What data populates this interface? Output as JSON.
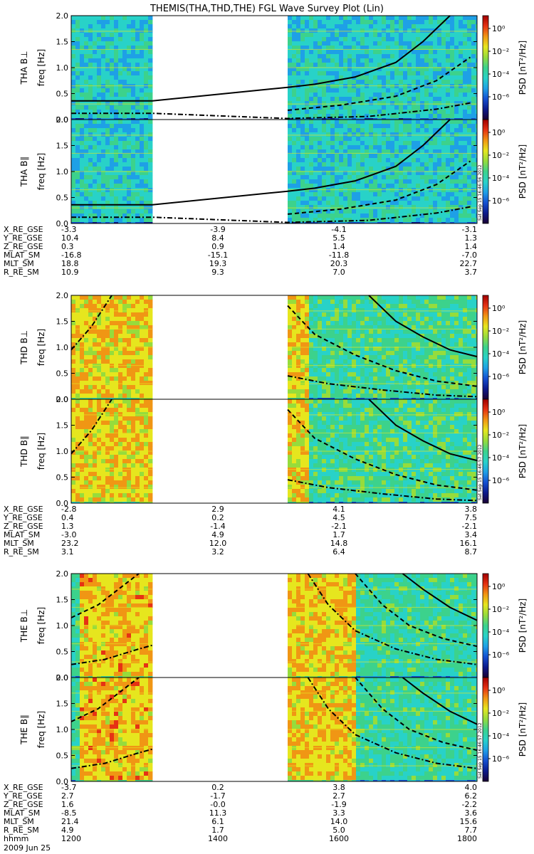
{
  "title": "THEMIS(THA,THD,THE) FGL Wave Survey Plot (Lin)",
  "colorbar": {
    "label": "PSD [nT²/Hz]",
    "ticks": [
      "10⁰",
      "10⁻²",
      "10⁻⁴",
      "10⁻⁶"
    ],
    "colors": [
      "#1a0033",
      "#0c1a8c",
      "#1450d2",
      "#1ea0e6",
      "#28d2c8",
      "#3cd28c",
      "#96dc3c",
      "#e6e61e",
      "#f09614",
      "#e63214",
      "#a00000"
    ]
  },
  "chart_data": [
    {
      "type": "heatmap",
      "probe": "THA",
      "date": "2009 Jun 25",
      "x_ticks": [
        "1200",
        "1400",
        "1600",
        "1800"
      ],
      "stamp": "Sat Sep 15 16:46:56 2012",
      "panels": [
        {
          "ylabel_probe": "THA B⊥",
          "ylabel_freq": "freq [Hz]",
          "ylim": [
            0,
            2.0
          ],
          "yticks": [
            "0.0",
            "0.5",
            "1.0",
            "1.5",
            "2.0"
          ],
          "data_ranges_hhmm": [
            [
              1200,
              1320
            ],
            [
              1520,
              1800
            ]
          ],
          "intensity": "low",
          "curves": [
            {
              "style": "solid",
              "points": [
                [
                  1200,
                  0.36
                ],
                [
                  1320,
                  0.36
                ],
                [
                  1520,
                  0.62
                ],
                [
                  1560,
                  0.68
                ],
                [
                  1620,
                  0.82
                ],
                [
                  1680,
                  1.1
                ],
                [
                  1720,
                  1.5
                ],
                [
                  1760,
                  2.0
                ]
              ]
            },
            {
              "style": "dashed",
              "points": [
                [
                  1520,
                  0.18
                ],
                [
                  1600,
                  0.28
                ],
                [
                  1680,
                  0.45
                ],
                [
                  1740,
                  0.75
                ],
                [
                  1790,
                  1.2
                ]
              ]
            },
            {
              "style": "dash-dot",
              "points": [
                [
                  1200,
                  0.12
                ],
                [
                  1320,
                  0.12
                ],
                [
                  1520,
                  0.02
                ],
                [
                  1640,
                  0.06
                ],
                [
                  1740,
                  0.2
                ],
                [
                  1790,
                  0.32
                ]
              ]
            }
          ]
        },
        {
          "ylabel_probe": "THA B∥",
          "ylabel_freq": "freq [Hz]",
          "ylim": [
            0,
            2.0
          ],
          "yticks": [
            "0.0",
            "0.5",
            "1.0",
            "1.5",
            "2.0"
          ],
          "data_ranges_hhmm": [
            [
              1200,
              1320
            ],
            [
              1520,
              1800
            ]
          ],
          "intensity": "low",
          "curves": [
            {
              "style": "solid",
              "points": [
                [
                  1200,
                  0.36
                ],
                [
                  1320,
                  0.36
                ],
                [
                  1520,
                  0.62
                ],
                [
                  1560,
                  0.68
                ],
                [
                  1620,
                  0.82
                ],
                [
                  1680,
                  1.1
                ],
                [
                  1720,
                  1.5
                ],
                [
                  1760,
                  2.0
                ]
              ]
            },
            {
              "style": "dashed",
              "points": [
                [
                  1520,
                  0.18
                ],
                [
                  1600,
                  0.28
                ],
                [
                  1680,
                  0.45
                ],
                [
                  1740,
                  0.75
                ],
                [
                  1790,
                  1.2
                ]
              ]
            },
            {
              "style": "dash-dot",
              "points": [
                [
                  1200,
                  0.12
                ],
                [
                  1320,
                  0.12
                ],
                [
                  1520,
                  0.02
                ],
                [
                  1640,
                  0.06
                ],
                [
                  1740,
                  0.2
                ],
                [
                  1790,
                  0.32
                ]
              ]
            }
          ]
        }
      ],
      "ephemeris": {
        "labels": [
          "X_RE_GSE",
          "Y_RE_GSE",
          "Z_RE_GSE",
          "MLAT_SM",
          "MLT_SM",
          "R_RE_SM"
        ],
        "columns": [
          [
            "-3.3",
            "10.4",
            "0.3",
            "-16.8",
            "18.8",
            "10.9"
          ],
          [
            "-3.9",
            "8.4",
            "0.9",
            "-15.1",
            "19.3",
            "9.3"
          ],
          [
            "-4.1",
            "5.5",
            "1.4",
            "-11.8",
            "20.3",
            "7.0"
          ],
          [
            "-3.1",
            "1.3",
            "1.4",
            "-7.0",
            "22.7",
            "3.7"
          ]
        ]
      }
    },
    {
      "type": "heatmap",
      "probe": "THD",
      "stamp": "Sat Sep 15 16:46:57 2012",
      "panels": [
        {
          "ylabel_probe": "THD B⊥",
          "ylabel_freq": "freq [Hz]",
          "ylim": [
            0,
            2.0
          ],
          "yticks": [
            "0.0",
            "0.5",
            "1.0",
            "1.5",
            "2.0"
          ],
          "data_ranges_hhmm": [
            [
              1200,
              1320
            ],
            [
              1520,
              1800
            ]
          ],
          "intensity": "high",
          "curves": [
            {
              "style": "dash-dot",
              "points": [
                [
                  1200,
                  0.95
                ],
                [
                  1230,
                  1.4
                ],
                [
                  1260,
                  2.0
                ]
              ]
            },
            {
              "style": "dashed",
              "points": [
                [
                  1520,
                  1.8
                ],
                [
                  1560,
                  1.25
                ],
                [
                  1620,
                  0.85
                ],
                [
                  1680,
                  0.55
                ],
                [
                  1740,
                  0.35
                ],
                [
                  1800,
                  0.25
                ]
              ]
            },
            {
              "style": "solid",
              "points": [
                [
                  1640,
                  2.0
                ],
                [
                  1680,
                  1.5
                ],
                [
                  1720,
                  1.2
                ],
                [
                  1760,
                  0.95
                ],
                [
                  1800,
                  0.82
                ]
              ]
            },
            {
              "style": "dash-dot",
              "points": [
                [
                  1520,
                  0.45
                ],
                [
                  1580,
                  0.3
                ],
                [
                  1660,
                  0.18
                ],
                [
                  1740,
                  0.08
                ],
                [
                  1800,
                  0.05
                ]
              ]
            }
          ]
        },
        {
          "ylabel_probe": "THD B∥",
          "ylabel_freq": "freq [Hz]",
          "ylim": [
            0,
            2.0
          ],
          "yticks": [
            "0.0",
            "0.5",
            "1.0",
            "1.5",
            "2.0"
          ],
          "data_ranges_hhmm": [
            [
              1200,
              1320
            ],
            [
              1520,
              1800
            ]
          ],
          "intensity": "high",
          "curves": [
            {
              "style": "dash-dot",
              "points": [
                [
                  1200,
                  0.95
                ],
                [
                  1230,
                  1.4
                ],
                [
                  1260,
                  2.0
                ]
              ]
            },
            {
              "style": "dashed",
              "points": [
                [
                  1520,
                  1.8
                ],
                [
                  1560,
                  1.25
                ],
                [
                  1620,
                  0.85
                ],
                [
                  1680,
                  0.55
                ],
                [
                  1740,
                  0.35
                ],
                [
                  1800,
                  0.25
                ]
              ]
            },
            {
              "style": "solid",
              "points": [
                [
                  1640,
                  2.0
                ],
                [
                  1680,
                  1.5
                ],
                [
                  1720,
                  1.2
                ],
                [
                  1760,
                  0.95
                ],
                [
                  1800,
                  0.82
                ]
              ]
            },
            {
              "style": "dash-dot",
              "points": [
                [
                  1520,
                  0.45
                ],
                [
                  1580,
                  0.3
                ],
                [
                  1660,
                  0.18
                ],
                [
                  1740,
                  0.08
                ],
                [
                  1800,
                  0.05
                ]
              ]
            }
          ]
        }
      ],
      "ephemeris": {
        "labels": [
          "X_RE_GSE",
          "Y_RE_GSE",
          "Z_RE_GSE",
          "MLAT_SM",
          "MLT_SM",
          "R_RE_SM"
        ],
        "columns": [
          [
            "-2.8",
            "0.4",
            "1.3",
            "-3.0",
            "23.2",
            "3.1"
          ],
          [
            "2.9",
            "0.2",
            "-1.4",
            "4.9",
            "12.0",
            "3.2"
          ],
          [
            "4.1",
            "4.5",
            "-2.1",
            "1.7",
            "14.8",
            "6.4"
          ],
          [
            "3.8",
            "7.5",
            "-2.1",
            "3.4",
            "16.1",
            "8.7"
          ]
        ]
      }
    },
    {
      "type": "heatmap",
      "probe": "THE",
      "stamp": "Sat Sep 15 16:46:57 2012",
      "panels": [
        {
          "ylabel_probe": "THE B⊥",
          "ylabel_freq": "freq [Hz]",
          "ylim": [
            0,
            2.0
          ],
          "yticks": [
            "0.0",
            "0.5",
            "1.0",
            "1.5",
            "2.0"
          ],
          "data_ranges_hhmm": [
            [
              1200,
              1320
            ],
            [
              1520,
              1800
            ]
          ],
          "intensity": "mixed",
          "curves": [
            {
              "style": "dashed",
              "points": [
                [
                  1200,
                  1.15
                ],
                [
                  1240,
                  1.4
                ],
                [
                  1280,
                  1.8
                ],
                [
                  1300,
                  2.0
                ]
              ]
            },
            {
              "style": "dash-dot",
              "points": [
                [
                  1200,
                  0.25
                ],
                [
                  1250,
                  0.35
                ],
                [
                  1300,
                  0.55
                ],
                [
                  1320,
                  0.62
                ]
              ]
            },
            {
              "style": "dash-dot",
              "points": [
                [
                  1550,
                  2.0
                ],
                [
                  1580,
                  1.4
                ],
                [
                  1620,
                  0.9
                ],
                [
                  1680,
                  0.55
                ],
                [
                  1740,
                  0.35
                ],
                [
                  1800,
                  0.25
                ]
              ]
            },
            {
              "style": "dashed",
              "points": [
                [
                  1620,
                  2.0
                ],
                [
                  1660,
                  1.4
                ],
                [
                  1700,
                  1.0
                ],
                [
                  1750,
                  0.75
                ],
                [
                  1800,
                  0.6
                ]
              ]
            },
            {
              "style": "solid",
              "points": [
                [
                  1690,
                  2.0
                ],
                [
                  1720,
                  1.7
                ],
                [
                  1760,
                  1.35
                ],
                [
                  1800,
                  1.1
                ]
              ]
            }
          ]
        },
        {
          "ylabel_probe": "THE B∥",
          "ylabel_freq": "freq [Hz]",
          "ylim": [
            0,
            2.0
          ],
          "yticks": [
            "0.0",
            "0.5",
            "1.0",
            "1.5",
            "2.0"
          ],
          "data_ranges_hhmm": [
            [
              1200,
              1320
            ],
            [
              1520,
              1800
            ]
          ],
          "intensity": "mixed",
          "curves": [
            {
              "style": "dashed",
              "points": [
                [
                  1200,
                  1.15
                ],
                [
                  1240,
                  1.4
                ],
                [
                  1280,
                  1.8
                ],
                [
                  1300,
                  2.0
                ]
              ]
            },
            {
              "style": "dash-dot",
              "points": [
                [
                  1200,
                  0.25
                ],
                [
                  1250,
                  0.35
                ],
                [
                  1300,
                  0.55
                ],
                [
                  1320,
                  0.62
                ]
              ]
            },
            {
              "style": "dash-dot",
              "points": [
                [
                  1550,
                  2.0
                ],
                [
                  1580,
                  1.4
                ],
                [
                  1620,
                  0.9
                ],
                [
                  1680,
                  0.55
                ],
                [
                  1740,
                  0.35
                ],
                [
                  1800,
                  0.25
                ]
              ]
            },
            {
              "style": "dashed",
              "points": [
                [
                  1620,
                  2.0
                ],
                [
                  1660,
                  1.4
                ],
                [
                  1700,
                  1.0
                ],
                [
                  1750,
                  0.75
                ],
                [
                  1800,
                  0.6
                ]
              ]
            },
            {
              "style": "solid",
              "points": [
                [
                  1690,
                  2.0
                ],
                [
                  1720,
                  1.7
                ],
                [
                  1760,
                  1.35
                ],
                [
                  1800,
                  1.1
                ]
              ]
            }
          ]
        }
      ],
      "ephemeris": {
        "labels": [
          "X_RE_GSE",
          "Y_RE_GSE",
          "Z_RE_GSE",
          "MLAT_SM",
          "MLT_SM",
          "R_RE_SM",
          "hhmm"
        ],
        "columns": [
          [
            "-3.7",
            "2.7",
            "1.6",
            "-8.5",
            "21.4",
            "4.9",
            "1200"
          ],
          [
            "0.2",
            "-1.7",
            "-0.0",
            "11.3",
            "6.1",
            "1.7",
            "1400"
          ],
          [
            "3.8",
            "2.7",
            "-1.9",
            "3.3",
            "14.0",
            "5.0",
            "1600"
          ],
          [
            "4.0",
            "6.2",
            "-2.2",
            "3.6",
            "15.6",
            "7.7",
            "1800"
          ]
        ]
      }
    }
  ]
}
